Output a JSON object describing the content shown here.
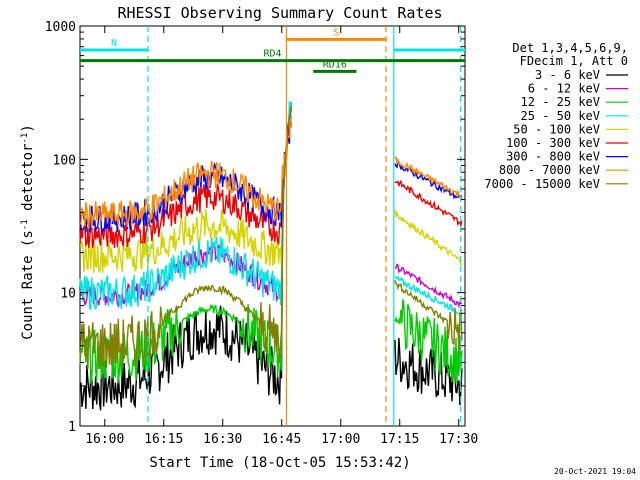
{
  "chart_data": {
    "type": "line",
    "title": "RHESSI Observing Summary Count Rates",
    "xlabel": "Start Time (18-Oct-05 15:53:42)",
    "ylabel_main": "Count Rate (s",
    "ylabel_sup1": "-1",
    "ylabel_mid": " detector",
    "ylabel_sup2": "-1",
    "ylabel_end": ")",
    "y_scale": "log",
    "xlim_minutes": [
      -6.3,
      91.6
    ],
    "ylim": [
      1,
      1000
    ],
    "x_ticks": [
      {
        "label": "16:00",
        "t": 0
      },
      {
        "label": "16:15",
        "t": 15
      },
      {
        "label": "16:30",
        "t": 30
      },
      {
        "label": "16:45",
        "t": 45
      },
      {
        "label": "17:00",
        "t": 60
      },
      {
        "label": "17:15",
        "t": 75
      },
      {
        "label": "17:30",
        "t": 90
      }
    ],
    "y_ticks": [
      {
        "label": "1",
        "v": 1
      },
      {
        "label": "10",
        "v": 10
      },
      {
        "label": "100",
        "v": 100
      },
      {
        "label": "1000",
        "v": 1000
      }
    ],
    "legend_header": [
      "Det 1,3,4,5,6,9,",
      "FDecim 1, Att 0"
    ],
    "legend_position": "right",
    "footer": "20-Oct-2021 19:04",
    "series": [
      {
        "name": "3 - 6 keV",
        "color": "#000000",
        "pre": [
          2.0,
          5.5,
          0.0
        ],
        "post": [
          3.3,
          2.0
        ]
      },
      {
        "name": "6 - 12 keV",
        "color": "#cc00cc",
        "pre": [
          9.5,
          20,
          0.1
        ],
        "post": [
          16,
          8
        ]
      },
      {
        "name": "12 - 25 keV",
        "color": "#00cc00",
        "pre": [
          3.3,
          7.5,
          0.0
        ],
        "post": [
          6.5,
          3.0
        ]
      },
      {
        "name": "25 - 50 keV",
        "color": "#00e5e5",
        "pre": [
          10,
          20,
          0.2
        ],
        "post": [
          13,
          7
        ]
      },
      {
        "name": "50 - 100 keV",
        "color": "#d4d400",
        "pre": [
          19,
          32,
          0.2
        ],
        "post": [
          40,
          17
        ]
      },
      {
        "name": "100 - 300 keV",
        "color": "#ee0000",
        "pre": [
          27,
          52,
          0.15
        ],
        "post": [
          70,
          33
        ]
      },
      {
        "name": "300 - 800 keV",
        "color": "#0000ff",
        "pre": [
          36,
          73,
          0.15
        ],
        "post": [
          95,
          50
        ]
      },
      {
        "name": "800 - 7000 keV",
        "color": "#ff8800",
        "pre": [
          38,
          78,
          0.15
        ],
        "post": [
          100,
          53
        ]
      },
      {
        "name": "7000 - 15000 keV",
        "color": "#808000",
        "pre": [
          4.0,
          11,
          0.0
        ],
        "post": [
          12,
          5
        ]
      }
    ],
    "flags": [
      {
        "label": "N",
        "color": "#00e5e5",
        "t0": -6.3,
        "t1": 11,
        "y_log": 2.82
      },
      {
        "label": "S",
        "color": "#ff8800",
        "t0": 46.2,
        "t1": 71.5,
        "y_log": 2.9
      },
      {
        "label": "RD4",
        "color": "#007700",
        "t0": -6.3,
        "t1": 91.6,
        "y_log": 2.74
      },
      {
        "label": "RD16",
        "color": "#007700",
        "t0": 53,
        "t1": 64,
        "y_log": 2.66
      }
    ],
    "markers": [
      {
        "t": 11,
        "color": "#00e5e5",
        "style": "dashed"
      },
      {
        "t": 46.2,
        "color": "#ff8800",
        "style": "solid"
      },
      {
        "t": 71.5,
        "color": "#ff8800",
        "style": "dashed"
      },
      {
        "t": 73.5,
        "color": "#00e5e5",
        "style": "solid"
      },
      {
        "t": 90.5,
        "color": "#00e5e5",
        "style": "dashed"
      }
    ],
    "gap_minutes": [
      47.5,
      73.5
    ]
  }
}
